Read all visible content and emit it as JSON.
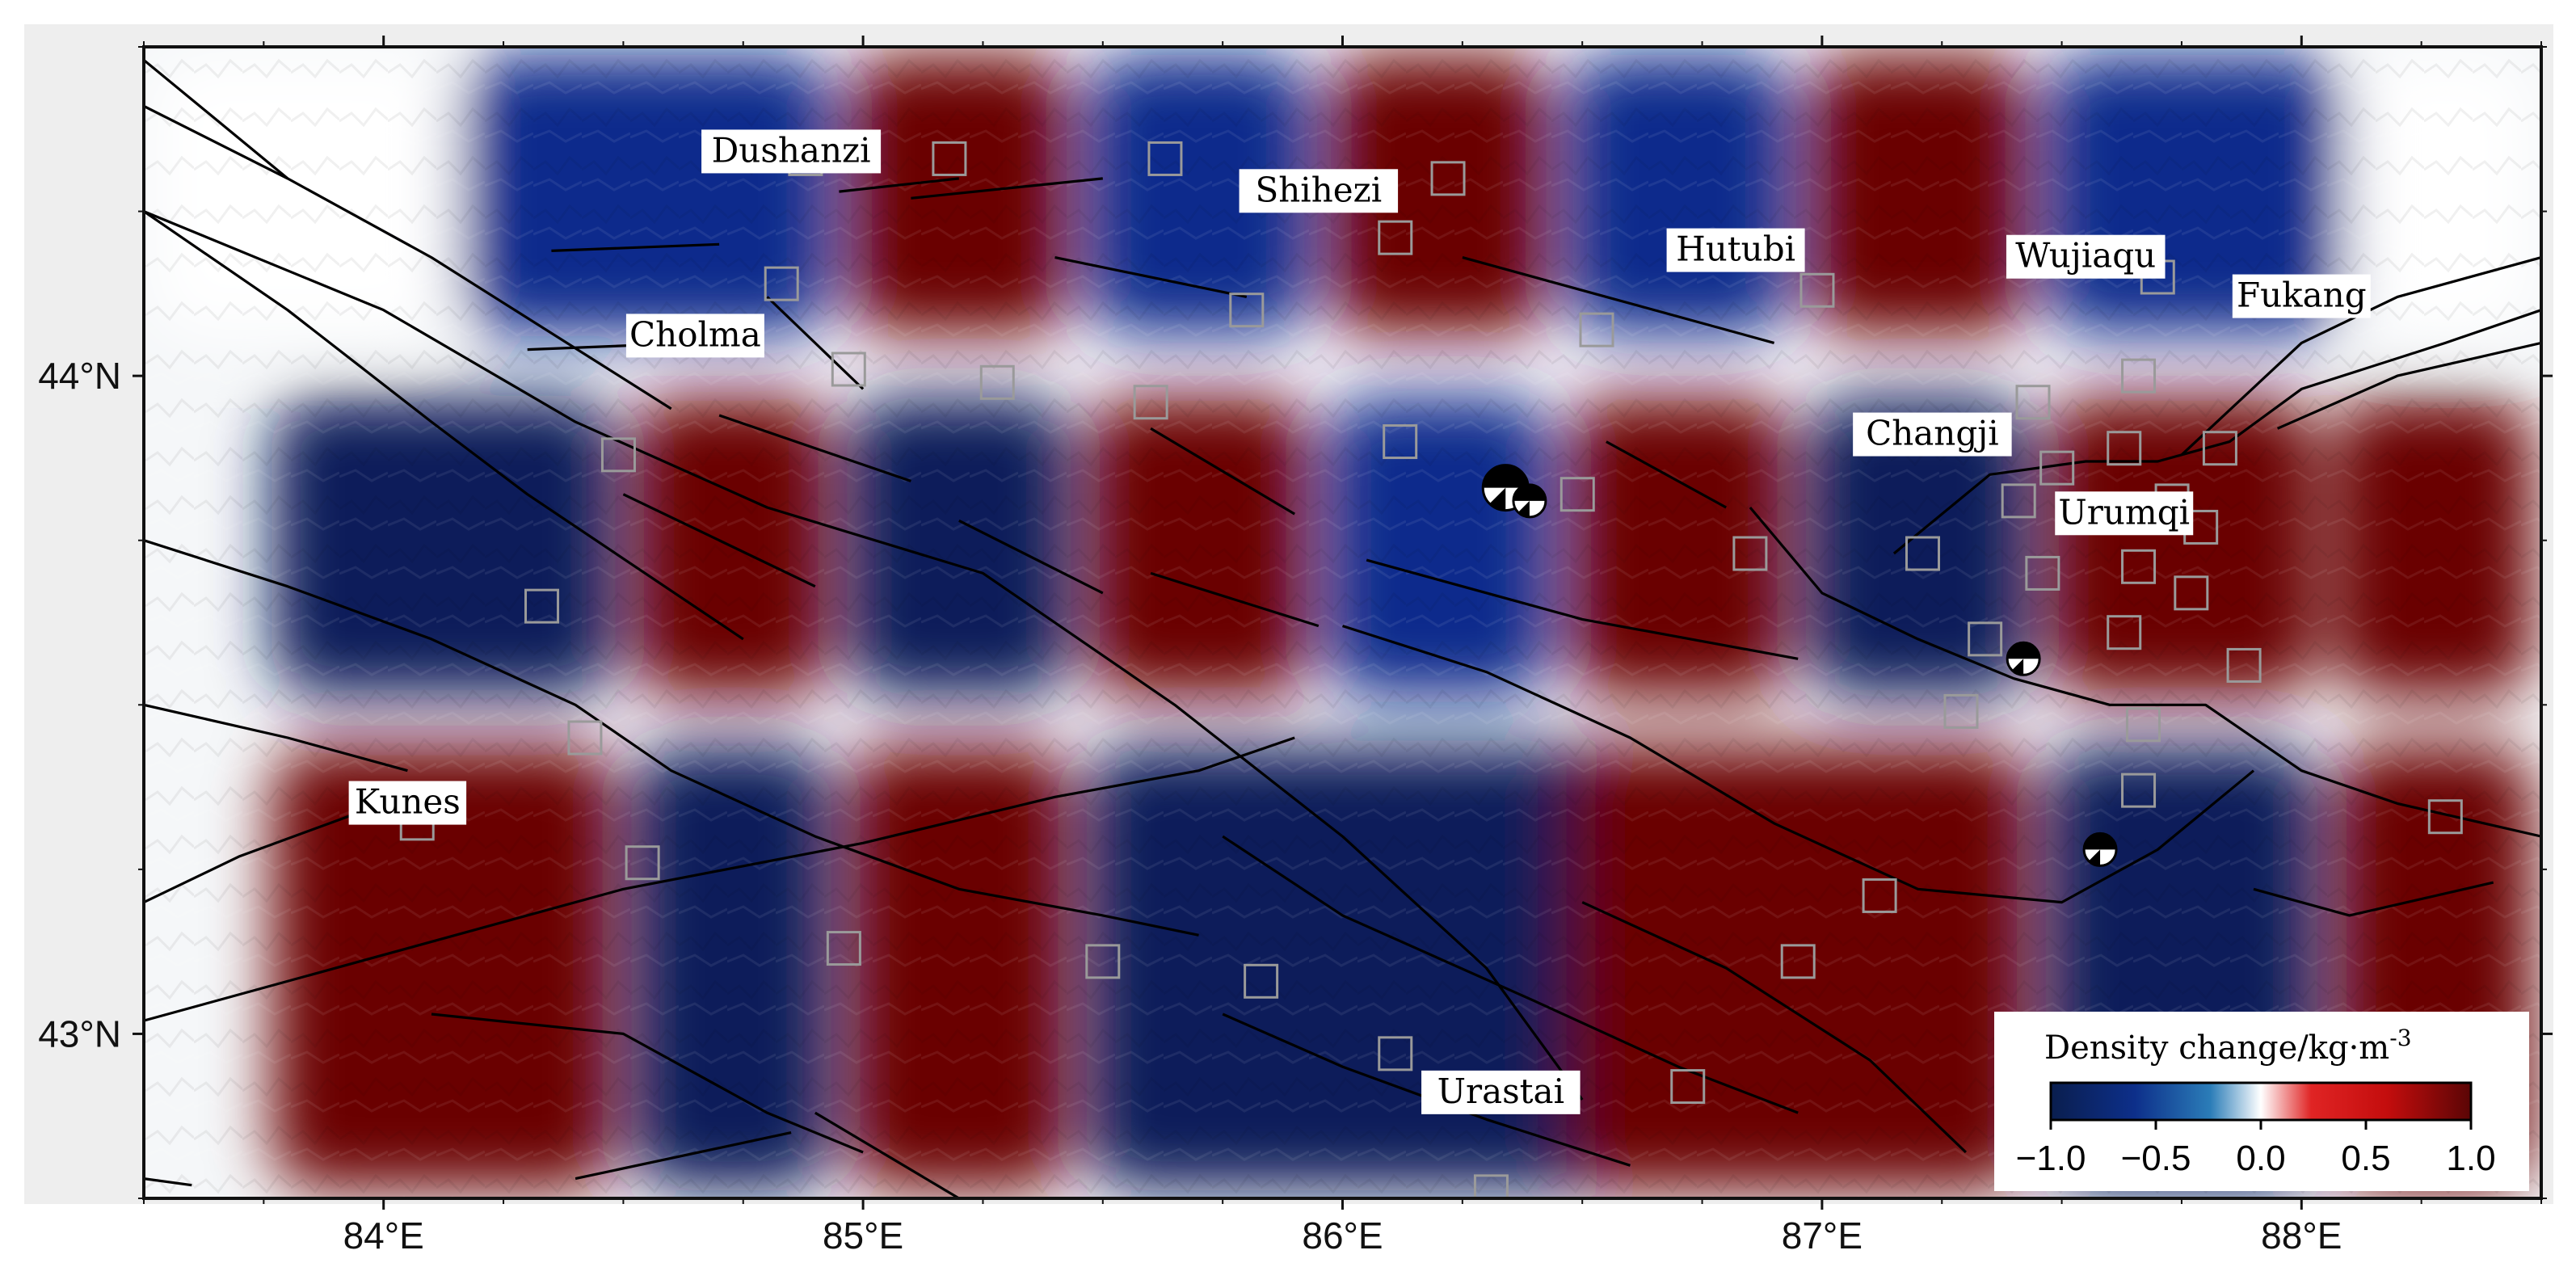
{
  "map": {
    "title": "",
    "lon_range": [
      83.5,
      88.5
    ],
    "lat_range": [
      42.75,
      44.5
    ]
  },
  "axes": {
    "x_ticks": [
      {
        "lon": 84,
        "label": "84°E"
      },
      {
        "lon": 85,
        "label": "85°E"
      },
      {
        "lon": 86,
        "label": "86°E"
      },
      {
        "lon": 87,
        "label": "87°E"
      },
      {
        "lon": 88,
        "label": "88°E"
      }
    ],
    "y_ticks": [
      {
        "lat": 44,
        "label": "44°N"
      },
      {
        "lat": 43,
        "label": "43°N"
      }
    ]
  },
  "cities": [
    {
      "name": "Dushanzi",
      "lon": 84.85,
      "lat": 44.33
    },
    {
      "name": "Shihezi",
      "lon": 85.95,
      "lat": 44.27
    },
    {
      "name": "Hutubi",
      "lon": 86.82,
      "lat": 44.18
    },
    {
      "name": "Wujiaqu",
      "lon": 87.55,
      "lat": 44.17
    },
    {
      "name": "Fukang",
      "lon": 88.0,
      "lat": 44.11
    },
    {
      "name": "Cholma",
      "lon": 84.65,
      "lat": 44.05
    },
    {
      "name": "Changji",
      "lon": 87.23,
      "lat": 43.9
    },
    {
      "name": "Urumqi",
      "lon": 87.63,
      "lat": 43.78
    },
    {
      "name": "Kunes",
      "lon": 84.05,
      "lat": 43.34
    },
    {
      "name": "Urastai",
      "lon": 86.33,
      "lat": 42.9
    }
  ],
  "stations": [
    [
      84.88,
      44.33
    ],
    [
      85.18,
      44.33
    ],
    [
      85.63,
      44.33
    ],
    [
      86.22,
      44.3
    ],
    [
      84.83,
      44.14
    ],
    [
      86.11,
      44.21
    ],
    [
      85.8,
      44.1
    ],
    [
      86.53,
      44.07
    ],
    [
      86.99,
      44.13
    ],
    [
      87.7,
      44.15
    ],
    [
      84.97,
      44.01
    ],
    [
      85.28,
      43.99
    ],
    [
      85.6,
      43.96
    ],
    [
      86.12,
      43.9
    ],
    [
      84.49,
      43.88
    ],
    [
      86.49,
      43.82
    ],
    [
      87.44,
      43.96
    ],
    [
      87.66,
      44.0
    ],
    [
      87.49,
      43.86
    ],
    [
      87.63,
      43.89
    ],
    [
      87.83,
      43.89
    ],
    [
      87.41,
      43.81
    ],
    [
      87.73,
      43.81
    ],
    [
      87.21,
      43.73
    ],
    [
      86.85,
      43.73
    ],
    [
      87.46,
      43.7
    ],
    [
      87.66,
      43.71
    ],
    [
      87.79,
      43.77
    ],
    [
      87.77,
      43.67
    ],
    [
      84.33,
      43.65
    ],
    [
      87.34,
      43.6
    ],
    [
      87.63,
      43.61
    ],
    [
      87.88,
      43.56
    ],
    [
      87.29,
      43.49
    ],
    [
      87.67,
      43.47
    ],
    [
      84.42,
      43.45
    ],
    [
      87.66,
      43.37
    ],
    [
      88.3,
      43.33
    ],
    [
      84.54,
      43.26
    ],
    [
      87.12,
      43.21
    ],
    [
      84.96,
      43.13
    ],
    [
      85.5,
      43.11
    ],
    [
      85.83,
      43.08
    ],
    [
      86.95,
      43.11
    ],
    [
      86.11,
      42.97
    ],
    [
      86.72,
      42.92
    ],
    [
      86.31,
      42.76
    ],
    [
      84.07,
      43.32
    ]
  ],
  "focal_mechanisms": [
    {
      "lon": 86.34,
      "lat": 43.83,
      "size": "large"
    },
    {
      "lon": 86.39,
      "lat": 43.81,
      "size": "medium"
    },
    {
      "lon": 87.42,
      "lat": 43.57,
      "size": "small"
    },
    {
      "lon": 87.58,
      "lat": 43.28,
      "size": "small"
    }
  ],
  "colorbar": {
    "title": "Density change/kg·m",
    "superscript": "-3",
    "ticks": [
      "−1.0",
      "−0.5",
      "0.0",
      "0.5",
      "1.0"
    ],
    "vmin": -1.0,
    "vmax": 1.0,
    "colors": [
      "#0a1e5a",
      "#0b2a8c",
      "#1f6fb0",
      "#ffffff",
      "#e02020",
      "#c40d0d",
      "#6a0505"
    ]
  },
  "density_field": {
    "rows": [
      {
        "lat_range": [
          44.05,
          44.5
        ],
        "cells": [
          {
            "lon": [
              83.5,
              84.15
            ],
            "v": 0.05
          },
          {
            "lon": [
              84.15,
              84.95
            ],
            "v": -0.75
          },
          {
            "lon": [
              84.95,
              85.45
            ],
            "v": 0.9
          },
          {
            "lon": [
              85.45,
              85.95
            ],
            "v": -0.8
          },
          {
            "lon": [
              85.95,
              86.45
            ],
            "v": 0.9
          },
          {
            "lon": [
              86.45,
              86.95
            ],
            "v": -0.8
          },
          {
            "lon": [
              86.95,
              87.45
            ],
            "v": 0.9
          },
          {
            "lon": [
              87.45,
              88.1
            ],
            "v": -0.8
          },
          {
            "lon": [
              88.1,
              88.5
            ],
            "v": 0.05
          }
        ]
      },
      {
        "lat_range": [
          43.5,
          43.98
        ],
        "cells": [
          {
            "lon": [
              83.75,
              84.5
            ],
            "v": -0.85
          },
          {
            "lon": [
              84.5,
              84.95
            ],
            "v": 0.85
          },
          {
            "lon": [
              84.95,
              85.45
            ],
            "v": -0.85
          },
          {
            "lon": [
              85.45,
              85.95
            ],
            "v": 0.85
          },
          {
            "lon": [
              85.95,
              86.45
            ],
            "v": -0.7
          },
          {
            "lon": [
              86.45,
              86.95
            ],
            "v": 0.85
          },
          {
            "lon": [
              86.95,
              87.45
            ],
            "v": -0.85
          },
          {
            "lon": [
              87.45,
              88.05
            ],
            "v": 0.9
          },
          {
            "lon": [
              88.05,
              88.5
            ],
            "v": 0.9
          }
        ]
      },
      {
        "lat_range": [
          42.75,
          43.45
        ],
        "cells": [
          {
            "lon": [
              83.75,
              84.5
            ],
            "v": 0.9
          },
          {
            "lon": [
              84.5,
              84.95
            ],
            "v": -0.85
          },
          {
            "lon": [
              84.95,
              85.45
            ],
            "v": 0.9
          },
          {
            "lon": [
              85.45,
              86.95
            ],
            "v": -0.85
          },
          {
            "lon": [
              86.45,
              87.45
            ],
            "v": 0.85
          },
          {
            "lon": [
              87.45,
              88.05
            ],
            "v": -0.85
          },
          {
            "lon": [
              88.05,
              88.5
            ],
            "v": 0.9
          }
        ]
      }
    ]
  },
  "faults": [
    [
      [
        83.5,
        44.48
      ],
      [
        83.7,
        44.36
      ],
      [
        83.8,
        44.3
      ]
    ],
    [
      [
        83.5,
        44.41
      ],
      [
        83.8,
        44.3
      ],
      [
        84.1,
        44.18
      ],
      [
        84.6,
        43.95
      ]
    ],
    [
      [
        83.5,
        44.25
      ],
      [
        83.8,
        44.1
      ],
      [
        84.1,
        43.93
      ],
      [
        84.3,
        43.82
      ],
      [
        84.75,
        43.6
      ]
    ],
    [
      [
        83.5,
        44.25
      ],
      [
        84.0,
        44.1
      ],
      [
        84.4,
        43.93
      ],
      [
        84.8,
        43.8
      ],
      [
        85.25,
        43.7
      ],
      [
        85.65,
        43.5
      ],
      [
        86.0,
        43.3
      ],
      [
        86.3,
        43.1
      ],
      [
        86.5,
        42.9
      ]
    ],
    [
      [
        83.5,
        43.75
      ],
      [
        83.8,
        43.68
      ],
      [
        84.1,
        43.6
      ],
      [
        84.4,
        43.5
      ],
      [
        84.6,
        43.4
      ],
      [
        84.9,
        43.3
      ],
      [
        85.2,
        43.22
      ],
      [
        85.5,
        43.18
      ],
      [
        85.7,
        43.15
      ]
    ],
    [
      [
        83.5,
        43.5
      ],
      [
        83.8,
        43.45
      ],
      [
        84.05,
        43.4
      ]
    ],
    [
      [
        83.5,
        43.2
      ],
      [
        83.7,
        43.27
      ],
      [
        84.0,
        43.35
      ]
    ],
    [
      [
        83.5,
        43.02
      ],
      [
        84.0,
        43.12
      ],
      [
        84.5,
        43.22
      ],
      [
        85.0,
        43.29
      ],
      [
        85.4,
        43.36
      ],
      [
        85.7,
        43.4
      ],
      [
        85.9,
        43.45
      ]
    ],
    [
      [
        84.1,
        43.03
      ],
      [
        84.5,
        43.0
      ],
      [
        84.8,
        42.88
      ],
      [
        85.0,
        42.82
      ]
    ],
    [
      [
        85.75,
        43.03
      ],
      [
        86.0,
        42.95
      ],
      [
        86.3,
        42.87
      ],
      [
        86.6,
        42.8
      ]
    ],
    [
      [
        85.75,
        43.3
      ],
      [
        86.0,
        43.18
      ],
      [
        86.4,
        43.05
      ],
      [
        86.7,
        42.95
      ],
      [
        86.95,
        42.88
      ]
    ],
    [
      [
        86.5,
        43.2
      ],
      [
        86.8,
        43.1
      ],
      [
        87.1,
        42.96
      ],
      [
        87.3,
        42.82
      ]
    ],
    [
      [
        86.0,
        43.62
      ],
      [
        86.3,
        43.55
      ],
      [
        86.6,
        43.45
      ],
      [
        86.9,
        43.32
      ],
      [
        87.2,
        43.22
      ],
      [
        87.5,
        43.2
      ],
      [
        87.7,
        43.28
      ],
      [
        87.9,
        43.4
      ]
    ],
    [
      [
        86.85,
        43.8
      ],
      [
        87.0,
        43.67
      ],
      [
        87.2,
        43.6
      ],
      [
        87.4,
        43.54
      ],
      [
        87.6,
        43.5
      ],
      [
        87.8,
        43.5
      ],
      [
        88.0,
        43.4
      ],
      [
        88.2,
        43.35
      ],
      [
        88.5,
        43.3
      ]
    ],
    [
      [
        87.15,
        43.73
      ],
      [
        87.35,
        43.85
      ],
      [
        87.55,
        43.87
      ],
      [
        87.7,
        43.87
      ],
      [
        87.85,
        43.9
      ],
      [
        88.0,
        43.98
      ],
      [
        88.3,
        44.05
      ],
      [
        88.5,
        44.1
      ]
    ],
    [
      [
        87.75,
        43.88
      ],
      [
        88.0,
        44.05
      ],
      [
        88.2,
        44.12
      ],
      [
        88.5,
        44.18
      ]
    ],
    [
      [
        87.95,
        43.92
      ],
      [
        88.2,
        44.0
      ],
      [
        88.5,
        44.05
      ]
    ],
    [
      [
        86.55,
        43.9
      ],
      [
        86.8,
        43.8
      ]
    ],
    [
      [
        86.25,
        44.18
      ],
      [
        86.55,
        44.12
      ],
      [
        86.9,
        44.05
      ]
    ],
    [
      [
        85.4,
        44.18
      ],
      [
        85.8,
        44.12
      ]
    ],
    [
      [
        85.1,
        44.27
      ],
      [
        85.5,
        44.3
      ]
    ],
    [
      [
        84.95,
        44.28
      ],
      [
        85.2,
        44.3
      ]
    ],
    [
      [
        84.8,
        44.12
      ],
      [
        85.0,
        43.98
      ]
    ],
    [
      [
        84.3,
        44.04
      ],
      [
        84.65,
        44.05
      ]
    ],
    [
      [
        84.35,
        44.19
      ],
      [
        84.7,
        44.2
      ]
    ],
    [
      [
        84.5,
        43.82
      ],
      [
        84.9,
        43.68
      ]
    ],
    [
      [
        84.7,
        43.94
      ],
      [
        85.1,
        43.84
      ]
    ],
    [
      [
        85.2,
        43.78
      ],
      [
        85.5,
        43.67
      ]
    ],
    [
      [
        85.6,
        43.92
      ],
      [
        85.9,
        43.79
      ]
    ],
    [
      [
        85.6,
        43.7
      ],
      [
        85.95,
        43.62
      ]
    ],
    [
      [
        86.05,
        43.72
      ],
      [
        86.5,
        43.63
      ],
      [
        86.95,
        43.57
      ]
    ],
    [
      [
        84.4,
        42.78
      ],
      [
        84.85,
        42.85
      ]
    ],
    [
      [
        84.9,
        42.88
      ],
      [
        85.2,
        42.75
      ]
    ],
    [
      [
        83.5,
        42.78
      ],
      [
        83.6,
        42.77
      ]
    ],
    [
      [
        87.9,
        43.22
      ],
      [
        88.1,
        43.18
      ],
      [
        88.4,
        43.23
      ]
    ]
  ]
}
